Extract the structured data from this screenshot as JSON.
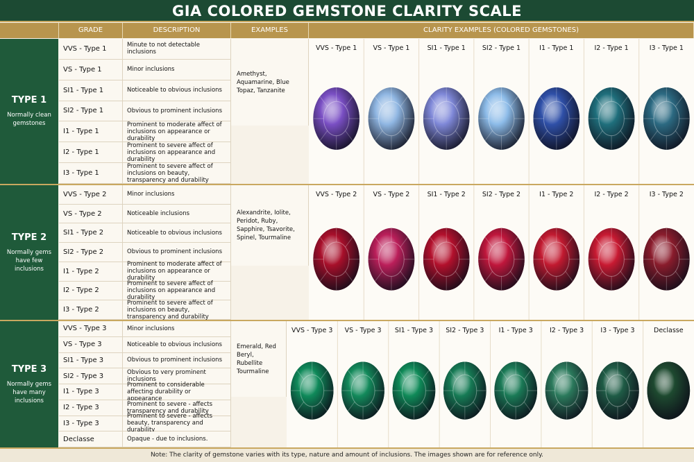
{
  "title": "GIA COLORED GEMSTONE CLARITY SCALE",
  "headers": [
    "GRADE",
    "DESCRIPTION",
    "EXAMPLES",
    "CLARITY EXAMPLES (COLORED GEMSTONES)"
  ],
  "sections": [
    {
      "type": "TYPE 1",
      "subtitle": "Normally clean gemstones",
      "examples": "Amethyst, Aquamarine, Blue Topaz, Tanzanite",
      "rows": [
        [
          "VVS - Type 1",
          "Minute to not detectable inclusions"
        ],
        [
          "VS - Type 1",
          "Minor inclusions"
        ],
        [
          "SI1 - Type 1",
          "Noticeable to obvious inclusions"
        ],
        [
          "SI2 - Type 1",
          "Obvious to prominent inclusions"
        ],
        [
          "I1 - Type 1",
          "Prominent to moderate affect of inclusions on appearance or durability"
        ],
        [
          "I2 - Type 1",
          "Prominent to severe affect of inclusions on appearance and durability"
        ],
        [
          "I3 - Type 1",
          "Prominent to severe affect of inclusions on beauty, transparency and durability"
        ]
      ],
      "gems": [
        "VVS - Type 1",
        "VS - Type 1",
        "SI1 - Type 1",
        "SI2 - Type 1",
        "I1 - Type 1",
        "I2 - Type 1",
        "I3 - Type 1"
      ]
    },
    {
      "type": "TYPE 2",
      "subtitle": "Normally gems have few inclusions",
      "examples": "Alexandrite, Iolite, Peridot, Ruby, Sapphire, Tsavorite, Spinel, Tourmaline",
      "rows": [
        [
          "VVS - Type 2",
          "Minor inclusions"
        ],
        [
          "VS - Type 2",
          "Noticeable inclusions"
        ],
        [
          "SI1 - Type 2",
          "Noticeable to obvious inclusions"
        ],
        [
          "SI2 - Type 2",
          "Obvious to prominent inclusions"
        ],
        [
          "I1 - Type 2",
          "Prominent to moderate affect of inclusions on appearance or durability"
        ],
        [
          "I2 - Type 2",
          "Prominent to severe affect of inclusions on appearance and durability"
        ],
        [
          "I3 - Type 2",
          "Prominent to severe affect of inclusions on beauty, transparency and durability"
        ]
      ],
      "gems": [
        "VVS - Type 2",
        "VS - Type 2",
        "SI1 - Type 2",
        "SI2 - Type 2",
        "I1 - Type 2",
        "I2 - Type 2",
        "I3 - Type 2"
      ]
    },
    {
      "type": "TYPE 3",
      "subtitle": "Normally gems have many inclusions",
      "examples": "Emerald, Red Beryl, Rubellite Tourmaline",
      "rows": [
        [
          "VVS - Type 3",
          "Minor inclusions"
        ],
        [
          "VS - Type 3",
          "Noticeable to obvious inclusions"
        ],
        [
          "SI1 - Type 3",
          "Obvious to prominent inclusions"
        ],
        [
          "SI2 - Type 3",
          "Obvious to very prominent inclusions"
        ],
        [
          "I1 - Type 3",
          "Prominent to considerable affecting durability or appearance"
        ],
        [
          "I2 - Type 3",
          "Prominent to severe - affects transparency and durability"
        ],
        [
          "I3 - Type 3",
          "Prominent to severe - affects beauty, transparency and durability"
        ],
        [
          "Declasse",
          "Opaque - due to inclusions."
        ]
      ],
      "gems": [
        "VVS - Type 3",
        "VS - Type 3",
        "SI1 - Type 3",
        "SI2 - Type 3",
        "I1 - Type 3",
        "I2 - Type 3",
        "I3 - Type 3",
        "Declasse"
      ]
    }
  ],
  "note": "Note: The clarity of gemstone varies with its type, nature and amount of inclusions. The images shown are for reference only."
}
